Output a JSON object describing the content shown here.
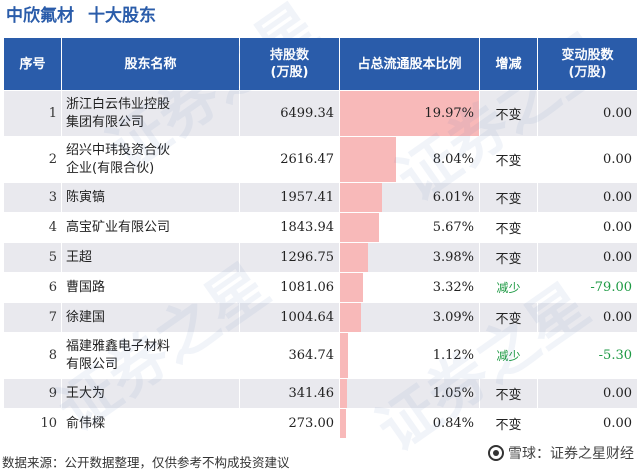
{
  "header": {
    "company": "中欣氟材",
    "subtitle": "十大股东"
  },
  "watermark": "证券之星",
  "table": {
    "headers": {
      "seq": "序号",
      "name": "股东名称",
      "shares_l1": "持股数",
      "shares_l2": "(万股)",
      "ratio": "占总流通股本比例",
      "change": "增减",
      "delta_l1": "变动股数",
      "delta_l2": "(万股)"
    },
    "rows": [
      {
        "seq": "1",
        "name_l1": "浙江白云伟业控股",
        "name_l2": "集团有限公司",
        "shares": "6499.34",
        "ratio": 19.97,
        "ratio_label": "19.97%",
        "change": "不变",
        "delta": "0.00",
        "dir": "same"
      },
      {
        "seq": "2",
        "name_l1": "绍兴中玮投资合伙",
        "name_l2": "企业(有限合伙)",
        "shares": "2616.47",
        "ratio": 8.04,
        "ratio_label": "8.04%",
        "change": "不变",
        "delta": "0.00",
        "dir": "same"
      },
      {
        "seq": "3",
        "name_l1": "陈寅镐",
        "name_l2": "",
        "shares": "1957.41",
        "ratio": 6.01,
        "ratio_label": "6.01%",
        "change": "不变",
        "delta": "0.00",
        "dir": "same"
      },
      {
        "seq": "4",
        "name_l1": "高宝矿业有限公司",
        "name_l2": "",
        "shares": "1843.94",
        "ratio": 5.67,
        "ratio_label": "5.67%",
        "change": "不变",
        "delta": "0.00",
        "dir": "same"
      },
      {
        "seq": "5",
        "name_l1": "王超",
        "name_l2": "",
        "shares": "1296.75",
        "ratio": 3.98,
        "ratio_label": "3.98%",
        "change": "不变",
        "delta": "0.00",
        "dir": "same"
      },
      {
        "seq": "6",
        "name_l1": "曹国路",
        "name_l2": "",
        "shares": "1081.06",
        "ratio": 3.32,
        "ratio_label": "3.32%",
        "change": "减少",
        "delta": "-79.00",
        "dir": "down"
      },
      {
        "seq": "7",
        "name_l1": "徐建国",
        "name_l2": "",
        "shares": "1004.64",
        "ratio": 3.09,
        "ratio_label": "3.09%",
        "change": "不变",
        "delta": "0.00",
        "dir": "same"
      },
      {
        "seq": "8",
        "name_l1": "福建雅鑫电子材料",
        "name_l2": "有限公司",
        "shares": "364.74",
        "ratio": 1.12,
        "ratio_label": "1.12%",
        "change": "减少",
        "delta": "-5.30",
        "dir": "down"
      },
      {
        "seq": "9",
        "name_l1": "王大为",
        "name_l2": "",
        "shares": "341.46",
        "ratio": 1.05,
        "ratio_label": "1.05%",
        "change": "不变",
        "delta": "0.00",
        "dir": "same"
      },
      {
        "seq": "10",
        "name_l1": "俞伟樑",
        "name_l2": "",
        "shares": "273.00",
        "ratio": 0.84,
        "ratio_label": "0.84%",
        "change": "不变",
        "delta": "0.00",
        "dir": "same"
      }
    ],
    "ratio_bar_max": 20,
    "colors": {
      "header_bg": "#2a5caa",
      "bar": "#f8b9b9",
      "decrease": "#1e9a44",
      "row_alt": "#e9e9ee"
    }
  },
  "footer": {
    "source": "数据来源：公开数据整理，仅供参考不构成投资建议",
    "brand": "雪球：证券之星财经",
    "brand_icon": "snowball-logo-icon"
  }
}
